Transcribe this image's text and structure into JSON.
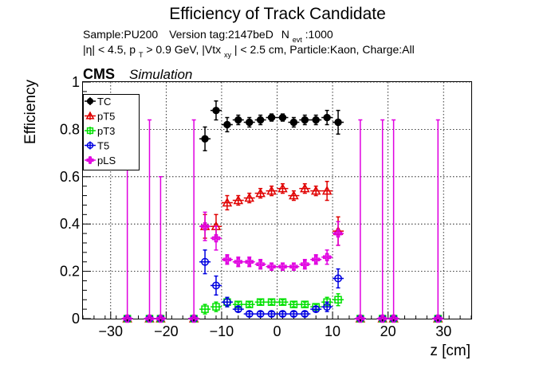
{
  "header": {
    "title": "Efficiency of Track Candidate",
    "sample_line": {
      "sample": "Sample:PU200",
      "version": "Version tag:2147beD",
      "nevt_main": "N",
      "nevt_sub": "evt",
      "nevt_value": ":1000"
    },
    "cuts_line": {
      "part1": "|η| < 4.5, p",
      "pt_sub": "T",
      "part2": " > 0.9 GeV, |Vtx",
      "vtx_sub": "xy",
      "part3": "| < 2.5 cm, Particle:Kaon, Charge:All"
    },
    "cms_label": "CMS",
    "simulation_label": "Simulation"
  },
  "chart_data": {
    "type": "scatter",
    "xlabel": "z [cm]",
    "ylabel": "Efficiency",
    "xlim": [
      -35,
      35
    ],
    "ylim": [
      0,
      1.0
    ],
    "x_ticks": [
      -30,
      -20,
      -10,
      0,
      10,
      20,
      30
    ],
    "y_ticks": [
      0,
      0.2,
      0.4,
      0.6,
      0.8,
      1
    ],
    "x_tick_labels": [
      "−30",
      "−20",
      "−10",
      "0",
      "10",
      "20",
      "30"
    ],
    "y_tick_labels": [
      "0",
      "0.2",
      "0.4",
      "0.6",
      "0.8",
      "1"
    ],
    "grid": true,
    "legend_position": "top-left",
    "series": [
      {
        "name": "TC",
        "color": "#000000",
        "marker": "filled-circle",
        "points": [
          {
            "x": -27,
            "y": 0,
            "err": 0
          },
          {
            "x": -23,
            "y": 0,
            "err": 0
          },
          {
            "x": -21,
            "y": 0,
            "err": 0
          },
          {
            "x": -15,
            "y": 0,
            "err": 0
          },
          {
            "x": -13,
            "y": 0.76,
            "err": 0.05
          },
          {
            "x": -11,
            "y": 0.88,
            "err": 0.04
          },
          {
            "x": -9,
            "y": 0.82,
            "err": 0.03
          },
          {
            "x": -7,
            "y": 0.84,
            "err": 0.02
          },
          {
            "x": -5,
            "y": 0.83,
            "err": 0.02
          },
          {
            "x": -3,
            "y": 0.84,
            "err": 0.02
          },
          {
            "x": -1,
            "y": 0.85,
            "err": 0.015
          },
          {
            "x": 1,
            "y": 0.85,
            "err": 0.015
          },
          {
            "x": 3,
            "y": 0.83,
            "err": 0.02
          },
          {
            "x": 5,
            "y": 0.84,
            "err": 0.02
          },
          {
            "x": 7,
            "y": 0.84,
            "err": 0.02
          },
          {
            "x": 9,
            "y": 0.85,
            "err": 0.03
          },
          {
            "x": 11,
            "y": 0.83,
            "err": 0.05
          },
          {
            "x": 15,
            "y": 0,
            "err": 0
          },
          {
            "x": 19,
            "y": 0,
            "err": 0
          },
          {
            "x": 21,
            "y": 0,
            "err": 0
          },
          {
            "x": 29,
            "y": 0,
            "err": 0
          }
        ]
      },
      {
        "name": "pT5",
        "color": "#e00000",
        "marker": "open-triangle",
        "points": [
          {
            "x": -27,
            "y": 0,
            "err": 0
          },
          {
            "x": -23,
            "y": 0,
            "err": 0
          },
          {
            "x": -21,
            "y": 0,
            "err": 0
          },
          {
            "x": -15,
            "y": 0,
            "err": 0
          },
          {
            "x": -13,
            "y": 0.39,
            "err": 0.05
          },
          {
            "x": -11,
            "y": 0.39,
            "err": 0.05
          },
          {
            "x": -9,
            "y": 0.49,
            "err": 0.03
          },
          {
            "x": -7,
            "y": 0.5,
            "err": 0.02
          },
          {
            "x": -5,
            "y": 0.51,
            "err": 0.02
          },
          {
            "x": -3,
            "y": 0.53,
            "err": 0.02
          },
          {
            "x": -1,
            "y": 0.54,
            "err": 0.02
          },
          {
            "x": 1,
            "y": 0.55,
            "err": 0.02
          },
          {
            "x": 3,
            "y": 0.52,
            "err": 0.02
          },
          {
            "x": 5,
            "y": 0.55,
            "err": 0.02
          },
          {
            "x": 7,
            "y": 0.54,
            "err": 0.02
          },
          {
            "x": 9,
            "y": 0.54,
            "err": 0.04
          },
          {
            "x": 11,
            "y": 0.37,
            "err": 0.06
          },
          {
            "x": 15,
            "y": 0,
            "err": 0
          },
          {
            "x": 19,
            "y": 0,
            "err": 0
          },
          {
            "x": 21,
            "y": 0,
            "err": 0
          },
          {
            "x": 29,
            "y": 0,
            "err": 0
          }
        ]
      },
      {
        "name": "pT3",
        "color": "#00e000",
        "marker": "open-square",
        "points": [
          {
            "x": -27,
            "y": 0,
            "err": 0
          },
          {
            "x": -23,
            "y": 0,
            "err": 0
          },
          {
            "x": -21,
            "y": 0,
            "err": 0
          },
          {
            "x": -15,
            "y": 0,
            "err": 0
          },
          {
            "x": -13,
            "y": 0.04,
            "err": 0.02
          },
          {
            "x": -11,
            "y": 0.05,
            "err": 0.02
          },
          {
            "x": -9,
            "y": 0.07,
            "err": 0.015
          },
          {
            "x": -7,
            "y": 0.06,
            "err": 0.01
          },
          {
            "x": -5,
            "y": 0.06,
            "err": 0.01
          },
          {
            "x": -3,
            "y": 0.07,
            "err": 0.01
          },
          {
            "x": -1,
            "y": 0.07,
            "err": 0.01
          },
          {
            "x": 1,
            "y": 0.07,
            "err": 0.01
          },
          {
            "x": 3,
            "y": 0.06,
            "err": 0.01
          },
          {
            "x": 5,
            "y": 0.06,
            "err": 0.01
          },
          {
            "x": 7,
            "y": 0.05,
            "err": 0.01
          },
          {
            "x": 9,
            "y": 0.07,
            "err": 0.02
          },
          {
            "x": 11,
            "y": 0.08,
            "err": 0.025
          },
          {
            "x": 15,
            "y": 0,
            "err": 0
          },
          {
            "x": 19,
            "y": 0,
            "err": 0
          },
          {
            "x": 21,
            "y": 0,
            "err": 0
          },
          {
            "x": 29,
            "y": 0,
            "err": 0
          }
        ]
      },
      {
        "name": "T5",
        "color": "#0000e0",
        "marker": "open-circle",
        "points": [
          {
            "x": -27,
            "y": 0,
            "err": 0
          },
          {
            "x": -23,
            "y": 0,
            "err": 0
          },
          {
            "x": -21,
            "y": 0,
            "err": 0
          },
          {
            "x": -15,
            "y": 0,
            "err": 0
          },
          {
            "x": -13,
            "y": 0.24,
            "err": 0.05
          },
          {
            "x": -11,
            "y": 0.14,
            "err": 0.04
          },
          {
            "x": -9,
            "y": 0.07,
            "err": 0.02
          },
          {
            "x": -7,
            "y": 0.04,
            "err": 0.01
          },
          {
            "x": -5,
            "y": 0.02,
            "err": 0.01
          },
          {
            "x": -3,
            "y": 0.02,
            "err": 0.01
          },
          {
            "x": -1,
            "y": 0.02,
            "err": 0.01
          },
          {
            "x": 1,
            "y": 0.02,
            "err": 0.01
          },
          {
            "x": 3,
            "y": 0.02,
            "err": 0.01
          },
          {
            "x": 5,
            "y": 0.02,
            "err": 0.01
          },
          {
            "x": 7,
            "y": 0.04,
            "err": 0.01
          },
          {
            "x": 9,
            "y": 0.05,
            "err": 0.02
          },
          {
            "x": 11,
            "y": 0.17,
            "err": 0.04
          },
          {
            "x": 15,
            "y": 0,
            "err": 0
          },
          {
            "x": 19,
            "y": 0,
            "err": 0
          },
          {
            "x": 21,
            "y": 0,
            "err": 0
          },
          {
            "x": 29,
            "y": 0,
            "err": 0
          }
        ]
      },
      {
        "name": "pLS",
        "color": "#e000e0",
        "marker": "open-cross",
        "points": [
          {
            "x": -27,
            "y": 0,
            "err": 0.84
          },
          {
            "x": -23,
            "y": 0,
            "err": 0.84
          },
          {
            "x": -21,
            "y": 0,
            "err": 0.6
          },
          {
            "x": -15,
            "y": 0,
            "err": 0.84
          },
          {
            "x": -13,
            "y": 0.39,
            "err": 0.06
          },
          {
            "x": -11,
            "y": 0.34,
            "err": 0.05
          },
          {
            "x": -9,
            "y": 0.25,
            "err": 0.02
          },
          {
            "x": -7,
            "y": 0.24,
            "err": 0.02
          },
          {
            "x": -5,
            "y": 0.24,
            "err": 0.02
          },
          {
            "x": -3,
            "y": 0.23,
            "err": 0.02
          },
          {
            "x": -1,
            "y": 0.22,
            "err": 0.015
          },
          {
            "x": 1,
            "y": 0.22,
            "err": 0.015
          },
          {
            "x": 3,
            "y": 0.22,
            "err": 0.015
          },
          {
            "x": 5,
            "y": 0.23,
            "err": 0.02
          },
          {
            "x": 7,
            "y": 0.25,
            "err": 0.02
          },
          {
            "x": 9,
            "y": 0.26,
            "err": 0.03
          },
          {
            "x": 11,
            "y": 0.36,
            "err": 0.05
          },
          {
            "x": 15,
            "y": 0,
            "err": 0.84
          },
          {
            "x": 19,
            "y": 0,
            "err": 0.84
          },
          {
            "x": 21,
            "y": 0,
            "err": 0.84
          },
          {
            "x": 29,
            "y": 0,
            "err": 0.84
          }
        ]
      }
    ]
  }
}
